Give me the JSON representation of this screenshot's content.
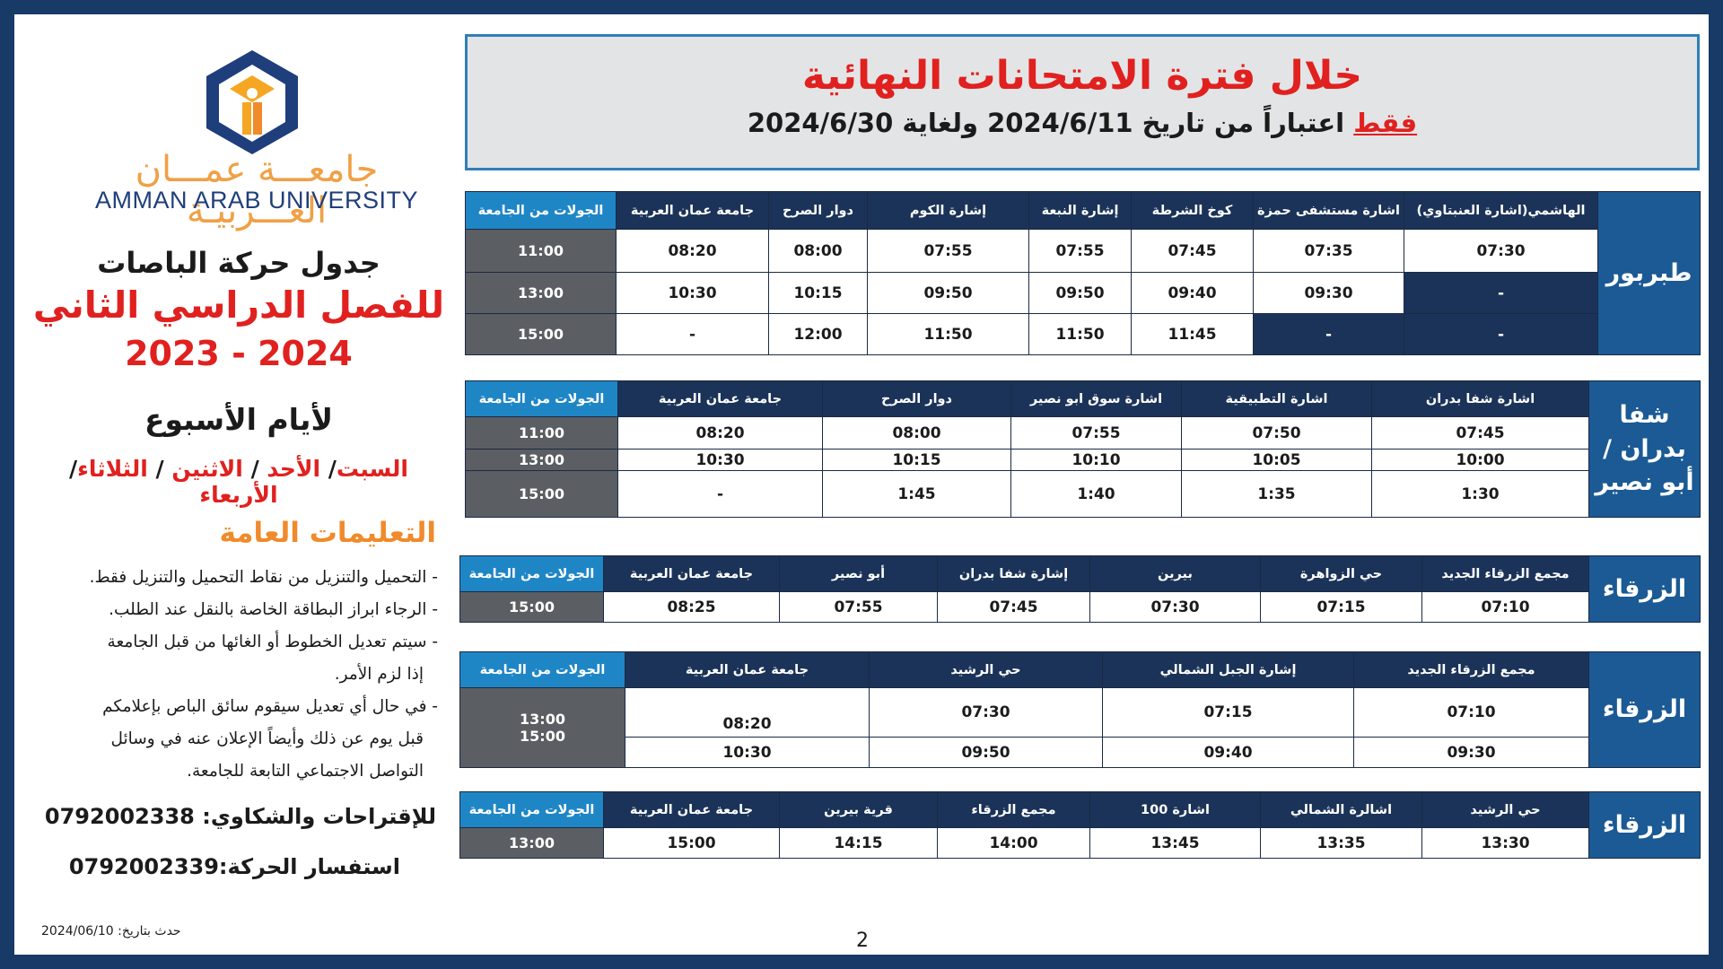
{
  "branding": {
    "university_ar": "جامعـــة عمـــان العـــربيـة",
    "university_en": "AMMAN ARAB UNIVERSITY"
  },
  "left": {
    "title1": "جدول حركة الباصات",
    "title2": "للفصل الدراسي الثاني",
    "title3": "2023 - 2024",
    "week_title": "لأيام الأسبوع",
    "days": [
      "السبت",
      "الأحد",
      "الاثنين",
      "الثلاثاء",
      "الأربعاء"
    ],
    "general_title": "التعليمات العامة",
    "instructions": [
      "- التحميل والتنزيل من نقاط التحميل والتنزيل فقط.",
      "- الرجاء ابراز البطاقة الخاصة بالنقل عند الطلب.",
      "- سيتم تعديل الخطوط أو الغائها من قبل الجامعة",
      "إذا لزم الأمر.",
      "- في حال أي تعديل سيقوم سائق الباص بإعلامكم",
      "قبل يوم عن ذلك وأيضاً الإعلان عنه في وسائل",
      "التواصل الاجتماعي التابعة للجامعة."
    ],
    "suggestions": "للإقتراحات والشكاوي: 0792002338",
    "inquiry": "استفسار الحركة:0792002339",
    "updated": "حدث بتاريخ: 2024/06/10"
  },
  "header": {
    "line1": "خلال فترة الامتحانات النهائية",
    "only": "فقط",
    "line2": " اعتباراً من تاريخ 2024/6/11 ولغاية 2024/6/30"
  },
  "page_number": "2",
  "uni_col_header": "الجولات من الجامعة",
  "routes": [
    {
      "name": "طبربور",
      "stops": [
        "الهاشمي(اشارة العنبتاوي)",
        "اشارة مستشفى حمزة",
        "كوخ الشرطة",
        "إشارة النبعة",
        "إشارة الكوم",
        "دوار الصرح",
        "جامعة عمان العربية"
      ],
      "trips": [
        {
          "times": [
            "07:30",
            "07:35",
            "07:45",
            "07:55",
            "07:55",
            "08:00",
            "08:20"
          ],
          "from_uni": "11:00"
        },
        {
          "times": [
            "-",
            "09:30",
            "09:40",
            "09:50",
            "09:50",
            "10:15",
            "10:30"
          ],
          "from_uni": "13:00"
        },
        {
          "times": [
            "-",
            "-",
            "11:45",
            "11:50",
            "11:50",
            "12:00",
            "-"
          ],
          "from_uni": "15:00"
        }
      ]
    },
    {
      "name": "شفا بدران / أبو نصير",
      "stops": [
        "اشارة شفا بدران",
        "اشارة التطبيقية",
        "اشارة سوق ابو نصير",
        "دوار الصرح",
        "جامعة عمان العربية"
      ],
      "trips": [
        {
          "times": [
            "07:45",
            "07:50",
            "07:55",
            "08:00",
            "08:20"
          ],
          "from_uni": "11:00"
        },
        {
          "times": [
            "10:00",
            "10:05",
            "10:10",
            "10:15",
            "10:30"
          ],
          "from_uni": "13:00"
        },
        {
          "times": [
            "1:30",
            "1:35",
            "1:40",
            "1:45",
            "-"
          ],
          "from_uni": "15:00"
        }
      ]
    },
    {
      "name": "الزرقاء",
      "stops": [
        "مجمع الزرقاء الجديد",
        "حي الزواهرة",
        "بيرين",
        "إشارة شفا بدران",
        "أبو نصير",
        "جامعة عمان العربية"
      ],
      "trips": [
        {
          "times": [
            "07:10",
            "07:15",
            "07:30",
            "07:45",
            "07:55",
            "08:25"
          ],
          "from_uni": "15:00"
        }
      ]
    },
    {
      "name": "الزرقاء",
      "stops": [
        "مجمع الزرقاء الجديد",
        "إشارة الجبل الشمالي",
        "حي الرشيد",
        "جامعة عمان العربية"
      ],
      "trips": [
        {
          "times": [
            "07:10",
            "07:15",
            "07:30",
            "08:20"
          ],
          "from_uni": "13:00"
        },
        {
          "times": [
            "09:30",
            "09:40",
            "09:50",
            "10:30"
          ],
          "from_uni": "15:00"
        }
      ]
    },
    {
      "name": "الزرقاء",
      "stops": [
        "حي الرشيد",
        "اشالرة الشمالي",
        "اشارة 100",
        "مجمع الزرقاء",
        "قرية بيرين",
        "جامعة عمان العربية"
      ],
      "trips": [
        {
          "times": [
            "13:30",
            "13:35",
            "13:45",
            "14:00",
            "14:15",
            "15:00"
          ],
          "from_uni": "13:00"
        }
      ]
    }
  ],
  "colors": {
    "frame": "#173a66",
    "accent_red": "#e0211f",
    "accent_orange": "#f08a2a",
    "header_dark": "#1b3358",
    "header_blue": "#1f86c6",
    "time_gray": "#5b5e63"
  }
}
